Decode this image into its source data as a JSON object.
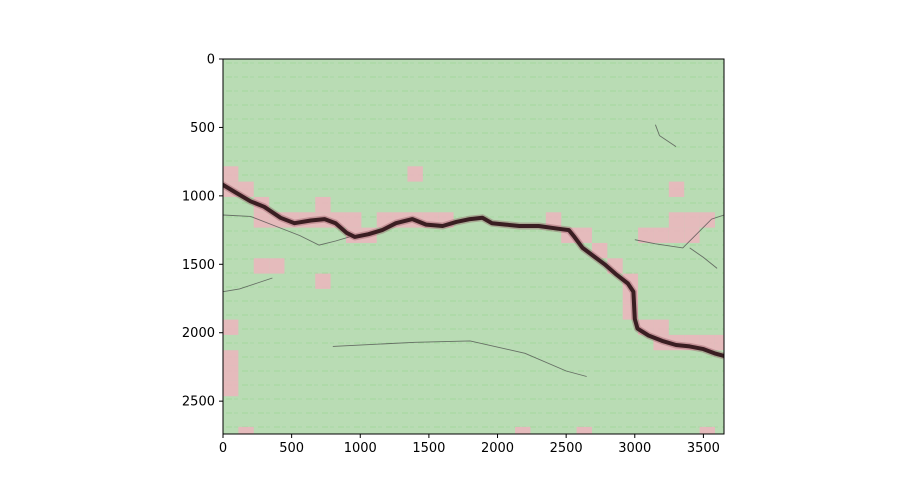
{
  "chart_data": {
    "type": "heatmap",
    "description_kind": "image overlay with grid-cell classification",
    "title": "",
    "xlabel": "",
    "ylabel": "",
    "xlim": [
      0,
      3650
    ],
    "ylim": [
      2740,
      0
    ],
    "y_inverted": true,
    "grid": false,
    "x_ticks": [
      {
        "value": 0,
        "label": "0"
      },
      {
        "value": 500,
        "label": "500"
      },
      {
        "value": 1000,
        "label": "1000"
      },
      {
        "value": 1500,
        "label": "1500"
      },
      {
        "value": 2000,
        "label": "2000"
      },
      {
        "value": 2500,
        "label": "2500"
      },
      {
        "value": 3000,
        "label": "3000"
      },
      {
        "value": 3500,
        "label": "3500"
      }
    ],
    "y_ticks": [
      {
        "value": 0,
        "label": "0"
      },
      {
        "value": 500,
        "label": "500"
      },
      {
        "value": 1000,
        "label": "1000"
      },
      {
        "value": 1500,
        "label": "1500"
      },
      {
        "value": 2000,
        "label": "2000"
      },
      {
        "value": 2500,
        "label": "2500"
      }
    ],
    "cell_size": 112,
    "base_class_color": "#b9dcb4",
    "flagged_class_color": "#e8b7bd",
    "crack_color": "#3a1e22",
    "flagged_cells": [
      {
        "x": 0,
        "y": 784
      },
      {
        "x": 0,
        "y": 896
      },
      {
        "x": 112,
        "y": 896
      },
      {
        "x": 224,
        "y": 1008
      },
      {
        "x": 224,
        "y": 1120
      },
      {
        "x": 336,
        "y": 1120
      },
      {
        "x": 448,
        "y": 1120
      },
      {
        "x": 560,
        "y": 1120
      },
      {
        "x": 672,
        "y": 1008
      },
      {
        "x": 672,
        "y": 1120
      },
      {
        "x": 784,
        "y": 1120
      },
      {
        "x": 896,
        "y": 1120
      },
      {
        "x": 896,
        "y": 1232
      },
      {
        "x": 1008,
        "y": 1232
      },
      {
        "x": 1120,
        "y": 1120
      },
      {
        "x": 1232,
        "y": 1120
      },
      {
        "x": 1344,
        "y": 784
      },
      {
        "x": 1344,
        "y": 1120
      },
      {
        "x": 1456,
        "y": 1120
      },
      {
        "x": 1568,
        "y": 1120
      },
      {
        "x": 2352,
        "y": 1120
      },
      {
        "x": 2464,
        "y": 1232
      },
      {
        "x": 2576,
        "y": 1232
      },
      {
        "x": 2688,
        "y": 1344
      },
      {
        "x": 2800,
        "y": 1456
      },
      {
        "x": 2912,
        "y": 1568
      },
      {
        "x": 2912,
        "y": 1680
      },
      {
        "x": 2912,
        "y": 1792
      },
      {
        "x": 3024,
        "y": 1232
      },
      {
        "x": 3024,
        "y": 1904
      },
      {
        "x": 3136,
        "y": 1232
      },
      {
        "x": 3136,
        "y": 1904
      },
      {
        "x": 3136,
        "y": 2016
      },
      {
        "x": 3248,
        "y": 896
      },
      {
        "x": 3248,
        "y": 1120
      },
      {
        "x": 3248,
        "y": 1232
      },
      {
        "x": 3248,
        "y": 2016
      },
      {
        "x": 3360,
        "y": 1120
      },
      {
        "x": 3360,
        "y": 1232
      },
      {
        "x": 3360,
        "y": 2016
      },
      {
        "x": 3472,
        "y": 1120
      },
      {
        "x": 3472,
        "y": 2016
      },
      {
        "x": 3584,
        "y": 2016
      },
      {
        "x": 224,
        "y": 1456
      },
      {
        "x": 336,
        "y": 1456
      },
      {
        "x": 672,
        "y": 1568
      },
      {
        "x": 0,
        "y": 1904
      },
      {
        "x": 0,
        "y": 2128
      },
      {
        "x": 0,
        "y": 2240
      },
      {
        "x": 0,
        "y": 2352
      },
      {
        "x": 112,
        "y": 2688
      },
      {
        "x": 2128,
        "y": 2688
      },
      {
        "x": 2576,
        "y": 2688
      },
      {
        "x": 3472,
        "y": 2688
      }
    ],
    "crack_main": [
      [
        0,
        920
      ],
      [
        100,
        980
      ],
      [
        200,
        1040
      ],
      [
        300,
        1080
      ],
      [
        420,
        1160
      ],
      [
        520,
        1200
      ],
      [
        640,
        1180
      ],
      [
        740,
        1170
      ],
      [
        820,
        1200
      ],
      [
        900,
        1270
      ],
      [
        960,
        1300
      ],
      [
        1060,
        1280
      ],
      [
        1160,
        1250
      ],
      [
        1260,
        1200
      ],
      [
        1380,
        1170
      ],
      [
        1480,
        1210
      ],
      [
        1600,
        1220
      ],
      [
        1700,
        1190
      ],
      [
        1800,
        1170
      ],
      [
        1890,
        1160
      ],
      [
        1960,
        1200
      ],
      [
        2060,
        1210
      ],
      [
        2160,
        1220
      ],
      [
        2300,
        1220
      ],
      [
        2440,
        1240
      ],
      [
        2520,
        1250
      ],
      [
        2560,
        1300
      ],
      [
        2620,
        1380
      ],
      [
        2700,
        1440
      ],
      [
        2780,
        1500
      ],
      [
        2860,
        1570
      ],
      [
        2950,
        1640
      ],
      [
        2990,
        1700
      ],
      [
        3000,
        1900
      ],
      [
        3020,
        1970
      ],
      [
        3100,
        2020
      ],
      [
        3200,
        2060
      ],
      [
        3300,
        2090
      ],
      [
        3400,
        2100
      ],
      [
        3500,
        2120
      ],
      [
        3580,
        2150
      ],
      [
        3650,
        2170
      ]
    ],
    "crack_thin": [
      [
        [
          0,
          1140
        ],
        [
          200,
          1150
        ],
        [
          380,
          1220
        ],
        [
          560,
          1290
        ],
        [
          700,
          1360
        ],
        [
          820,
          1330
        ],
        [
          920,
          1300
        ]
      ],
      [
        [
          3000,
          1320
        ],
        [
          3150,
          1350
        ],
        [
          3350,
          1380
        ],
        [
          3430,
          1300
        ],
        [
          3500,
          1230
        ],
        [
          3560,
          1170
        ],
        [
          3650,
          1140
        ]
      ],
      [
        [
          0,
          1700
        ],
        [
          120,
          1680
        ],
        [
          240,
          1640
        ],
        [
          360,
          1600
        ]
      ],
      [
        [
          800,
          2100
        ],
        [
          1400,
          2070
        ],
        [
          1800,
          2060
        ],
        [
          2200,
          2150
        ],
        [
          2500,
          2280
        ],
        [
          2650,
          2320
        ]
      ],
      [
        [
          3400,
          1380
        ],
        [
          3500,
          1450
        ],
        [
          3600,
          1530
        ]
      ],
      [
        [
          3150,
          480
        ],
        [
          3180,
          560
        ],
        [
          3300,
          640
        ]
      ]
    ]
  }
}
